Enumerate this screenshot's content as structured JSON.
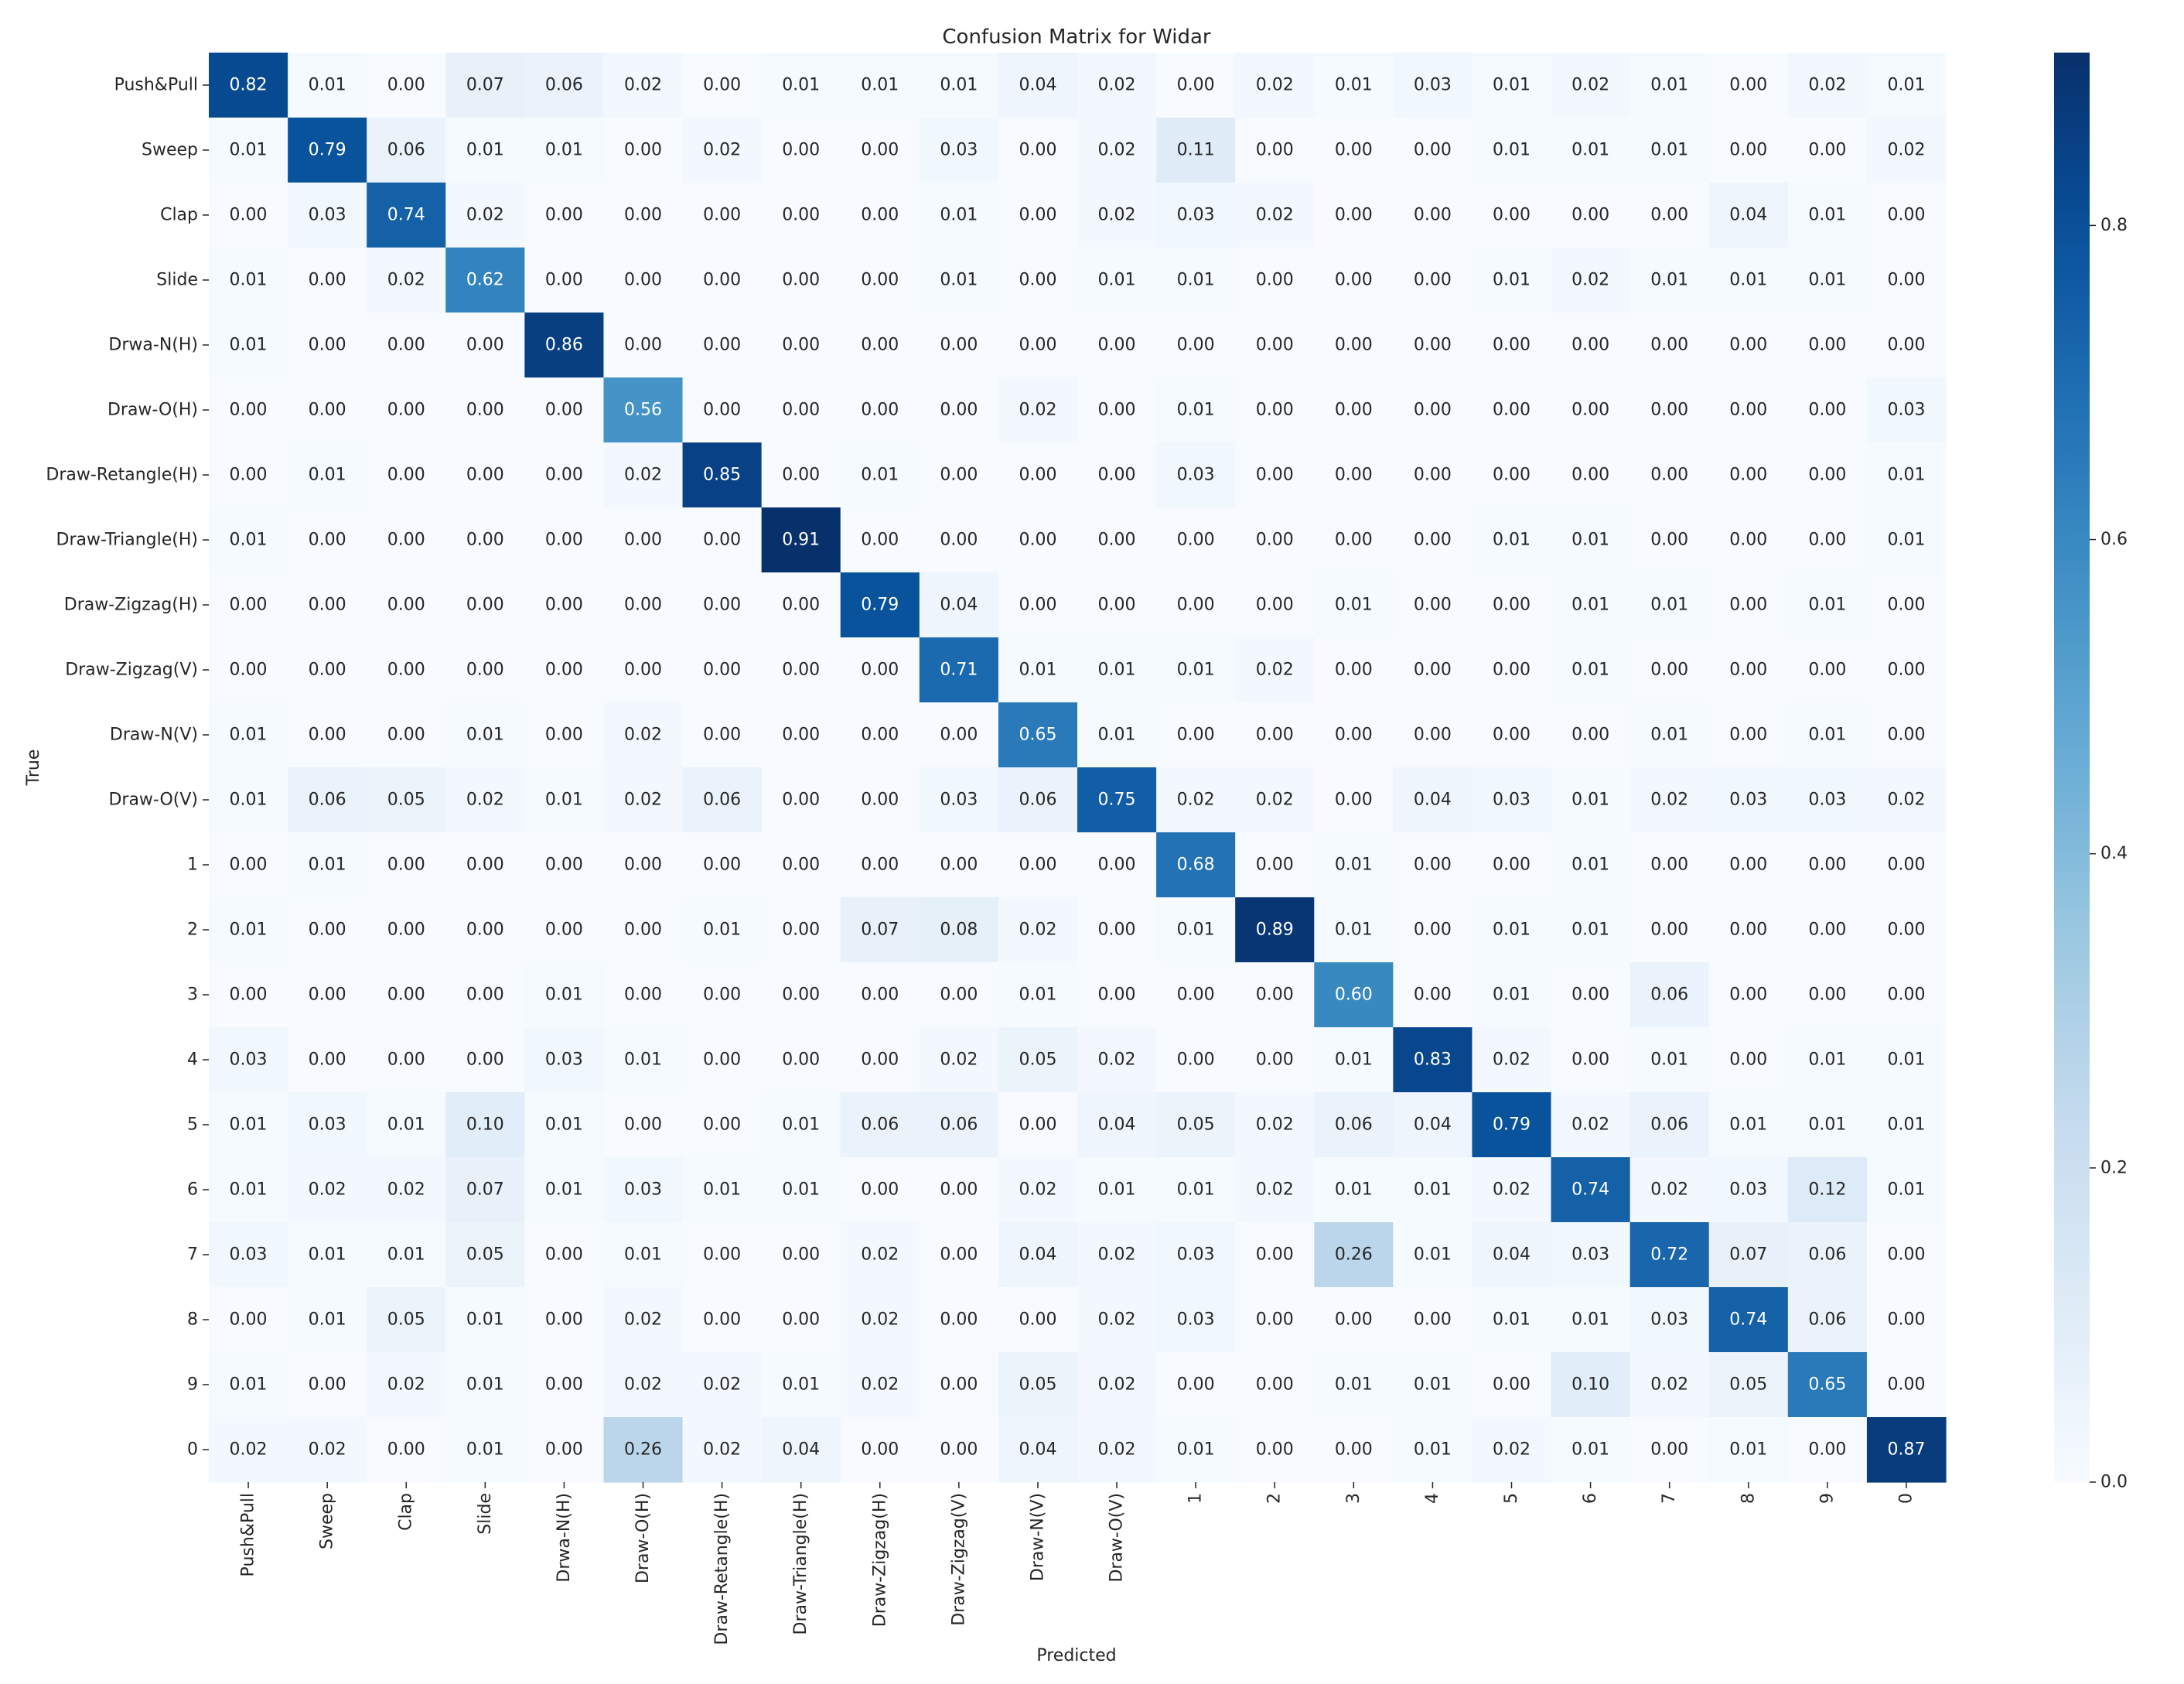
{
  "chart_data": {
    "type": "heatmap",
    "title": "Confusion Matrix for Widar",
    "xlabel": "Predicted",
    "ylabel": "True",
    "labels": [
      "Push&Pull",
      "Sweep",
      "Clap",
      "Slide",
      "Drwa-N(H)",
      "Draw-O(H)",
      "Draw-Retangle(H)",
      "Draw-Triangle(H)",
      "Draw-Zigzag(H)",
      "Draw-Zigzag(V)",
      "Draw-N(V)",
      "Draw-O(V)",
      "1",
      "2",
      "3",
      "4",
      "5",
      "6",
      "7",
      "8",
      "9",
      "0"
    ],
    "matrix": [
      [
        0.82,
        0.01,
        0.0,
        0.07,
        0.06,
        0.02,
        0.0,
        0.01,
        0.01,
        0.01,
        0.04,
        0.02,
        0.0,
        0.02,
        0.01,
        0.03,
        0.01,
        0.02,
        0.01,
        0.0,
        0.02,
        0.01
      ],
      [
        0.01,
        0.79,
        0.06,
        0.01,
        0.01,
        0.0,
        0.02,
        0.0,
        0.0,
        0.03,
        0.0,
        0.02,
        0.11,
        0.0,
        0.0,
        0.0,
        0.01,
        0.01,
        0.01,
        0.0,
        0.0,
        0.02
      ],
      [
        0.0,
        0.03,
        0.74,
        0.02,
        0.0,
        0.0,
        0.0,
        0.0,
        0.0,
        0.01,
        0.0,
        0.02,
        0.03,
        0.02,
        0.0,
        0.0,
        0.0,
        0.0,
        0.0,
        0.04,
        0.01,
        0.0
      ],
      [
        0.01,
        0.0,
        0.02,
        0.62,
        0.0,
        0.0,
        0.0,
        0.0,
        0.0,
        0.01,
        0.0,
        0.01,
        0.01,
        0.0,
        0.0,
        0.0,
        0.01,
        0.02,
        0.01,
        0.01,
        0.01,
        0.0
      ],
      [
        0.01,
        0.0,
        0.0,
        0.0,
        0.86,
        0.0,
        0.0,
        0.0,
        0.0,
        0.0,
        0.0,
        0.0,
        0.0,
        0.0,
        0.0,
        0.0,
        0.0,
        0.0,
        0.0,
        0.0,
        0.0,
        0.0
      ],
      [
        0.0,
        0.0,
        0.0,
        0.0,
        0.0,
        0.56,
        0.0,
        0.0,
        0.0,
        0.0,
        0.02,
        0.0,
        0.01,
        0.0,
        0.0,
        0.0,
        0.0,
        0.0,
        0.0,
        0.0,
        0.0,
        0.03
      ],
      [
        0.0,
        0.01,
        0.0,
        0.0,
        0.0,
        0.02,
        0.85,
        0.0,
        0.01,
        0.0,
        0.0,
        0.0,
        0.03,
        0.0,
        0.0,
        0.0,
        0.0,
        0.0,
        0.0,
        0.0,
        0.0,
        0.01
      ],
      [
        0.01,
        0.0,
        0.0,
        0.0,
        0.0,
        0.0,
        0.0,
        0.91,
        0.0,
        0.0,
        0.0,
        0.0,
        0.0,
        0.0,
        0.0,
        0.0,
        0.01,
        0.01,
        0.0,
        0.0,
        0.0,
        0.01
      ],
      [
        0.0,
        0.0,
        0.0,
        0.0,
        0.0,
        0.0,
        0.0,
        0.0,
        0.79,
        0.04,
        0.0,
        0.0,
        0.0,
        0.0,
        0.01,
        0.0,
        0.0,
        0.01,
        0.01,
        0.0,
        0.01,
        0.0
      ],
      [
        0.0,
        0.0,
        0.0,
        0.0,
        0.0,
        0.0,
        0.0,
        0.0,
        0.0,
        0.71,
        0.01,
        0.01,
        0.01,
        0.02,
        0.0,
        0.0,
        0.0,
        0.01,
        0.0,
        0.0,
        0.0,
        0.0
      ],
      [
        0.01,
        0.0,
        0.0,
        0.01,
        0.0,
        0.02,
        0.0,
        0.0,
        0.0,
        0.0,
        0.65,
        0.01,
        0.0,
        0.0,
        0.0,
        0.0,
        0.0,
        0.0,
        0.01,
        0.0,
        0.01,
        0.0
      ],
      [
        0.01,
        0.06,
        0.05,
        0.02,
        0.01,
        0.02,
        0.06,
        0.0,
        0.0,
        0.03,
        0.06,
        0.75,
        0.02,
        0.02,
        0.0,
        0.04,
        0.03,
        0.01,
        0.02,
        0.03,
        0.03,
        0.02
      ],
      [
        0.0,
        0.01,
        0.0,
        0.0,
        0.0,
        0.0,
        0.0,
        0.0,
        0.0,
        0.0,
        0.0,
        0.0,
        0.68,
        0.0,
        0.01,
        0.0,
        0.0,
        0.01,
        0.0,
        0.0,
        0.0,
        0.0
      ],
      [
        0.01,
        0.0,
        0.0,
        0.0,
        0.0,
        0.0,
        0.01,
        0.0,
        0.07,
        0.08,
        0.02,
        0.0,
        0.01,
        0.89,
        0.01,
        0.0,
        0.01,
        0.01,
        0.0,
        0.0,
        0.0,
        0.0
      ],
      [
        0.0,
        0.0,
        0.0,
        0.0,
        0.01,
        0.0,
        0.0,
        0.0,
        0.0,
        0.0,
        0.01,
        0.0,
        0.0,
        0.0,
        0.6,
        0.0,
        0.01,
        0.0,
        0.06,
        0.0,
        0.0,
        0.0
      ],
      [
        0.03,
        0.0,
        0.0,
        0.0,
        0.03,
        0.01,
        0.0,
        0.0,
        0.0,
        0.02,
        0.05,
        0.02,
        0.0,
        0.0,
        0.01,
        0.83,
        0.02,
        0.0,
        0.01,
        0.0,
        0.01,
        0.01
      ],
      [
        0.01,
        0.03,
        0.01,
        0.1,
        0.01,
        0.0,
        0.0,
        0.01,
        0.06,
        0.06,
        0.0,
        0.04,
        0.05,
        0.02,
        0.06,
        0.04,
        0.79,
        0.02,
        0.06,
        0.01,
        0.01,
        0.01
      ],
      [
        0.01,
        0.02,
        0.02,
        0.07,
        0.01,
        0.03,
        0.01,
        0.01,
        0.0,
        0.0,
        0.02,
        0.01,
        0.01,
        0.02,
        0.01,
        0.01,
        0.02,
        0.74,
        0.02,
        0.03,
        0.12,
        0.01
      ],
      [
        0.03,
        0.01,
        0.01,
        0.05,
        0.0,
        0.01,
        0.0,
        0.0,
        0.02,
        0.0,
        0.04,
        0.02,
        0.03,
        0.0,
        0.26,
        0.01,
        0.04,
        0.03,
        0.72,
        0.07,
        0.06,
        0.0
      ],
      [
        0.0,
        0.01,
        0.05,
        0.01,
        0.0,
        0.02,
        0.0,
        0.0,
        0.02,
        0.0,
        0.0,
        0.02,
        0.03,
        0.0,
        0.0,
        0.0,
        0.01,
        0.01,
        0.03,
        0.74,
        0.06,
        0.0
      ],
      [
        0.01,
        0.0,
        0.02,
        0.01,
        0.0,
        0.02,
        0.02,
        0.01,
        0.02,
        0.0,
        0.05,
        0.02,
        0.0,
        0.0,
        0.01,
        0.01,
        0.0,
        0.1,
        0.02,
        0.05,
        0.65,
        0.0
      ],
      [
        0.02,
        0.02,
        0.0,
        0.01,
        0.0,
        0.26,
        0.02,
        0.04,
        0.0,
        0.0,
        0.04,
        0.02,
        0.01,
        0.0,
        0.0,
        0.01,
        0.02,
        0.01,
        0.0,
        0.01,
        0.0,
        0.87
      ]
    ],
    "colormap": "Blues",
    "colorbar": {
      "range": [
        0.0,
        0.91
      ],
      "ticks": [
        0.0,
        0.2,
        0.4,
        0.6,
        0.8
      ],
      "tick_labels": [
        "0.0",
        "0.2",
        "0.4",
        "0.6",
        "0.8"
      ]
    },
    "value_format": "two decimals"
  }
}
